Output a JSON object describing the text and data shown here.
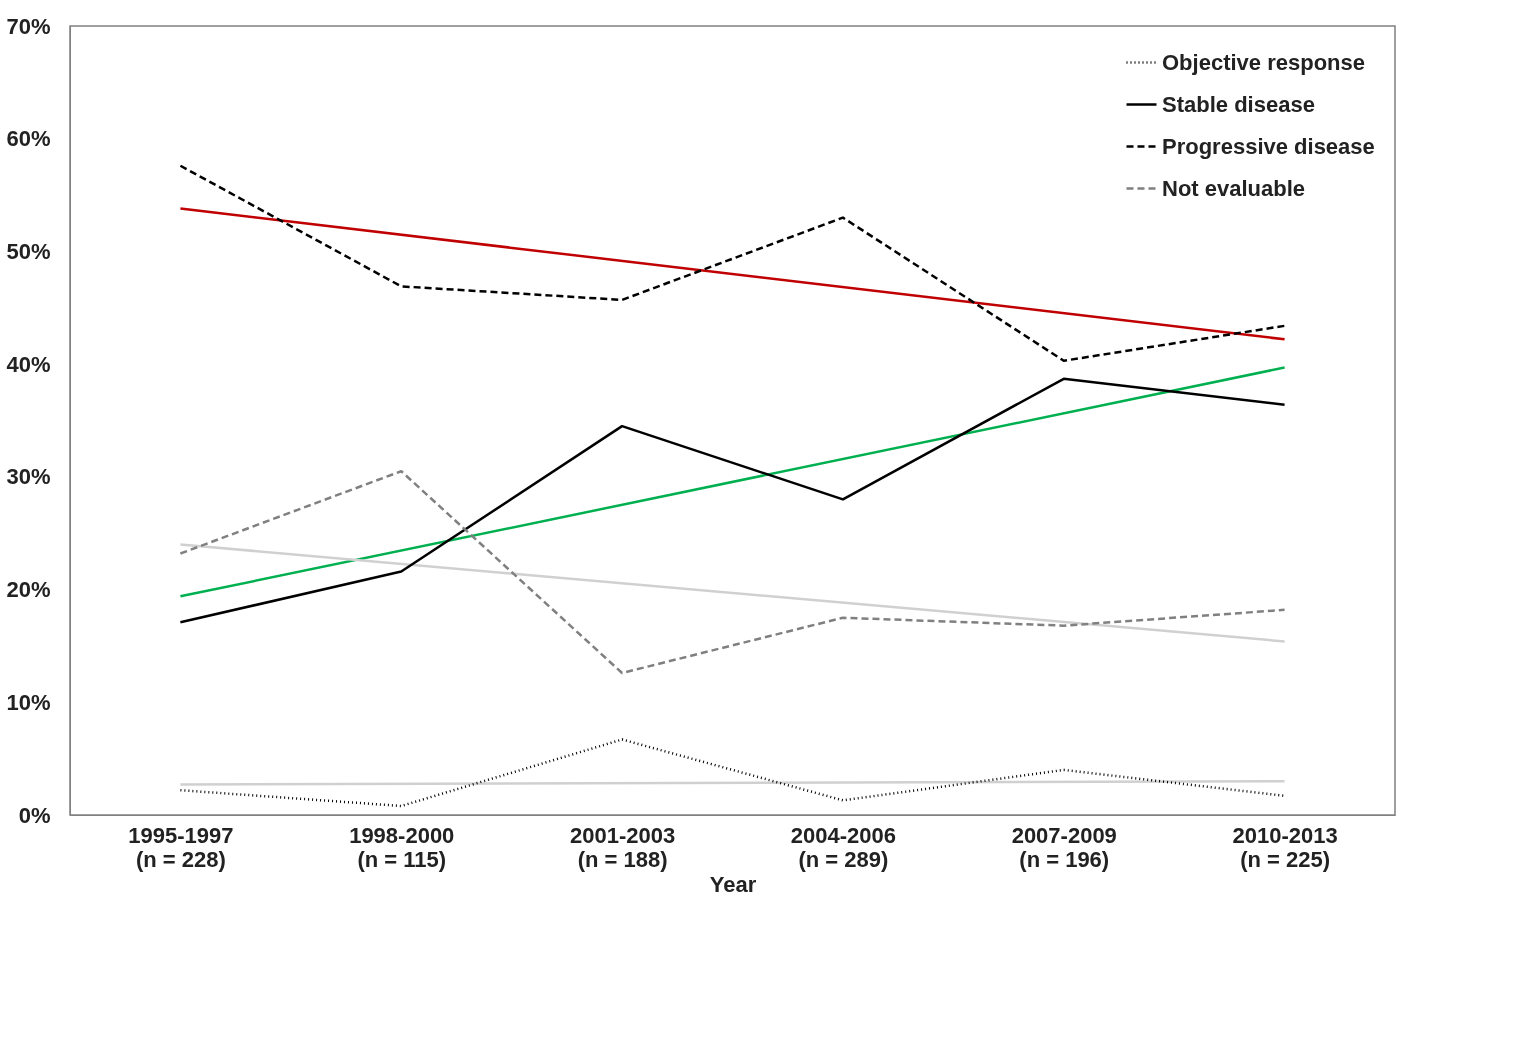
{
  "chart_data": {
    "type": "line",
    "xlabel": "Year",
    "categories": [
      "1995-1997\n(n = 228)",
      "1998-2000\n(n = 115)",
      "2001-2003\n(n = 188)",
      "2004-2006\n(n = 289)",
      "2007-2009\n(n = 196)",
      "2010-2013\n(n = 225)"
    ],
    "series": [
      {
        "name": "Objective response",
        "color": "#000000",
        "line_style": "dotted",
        "values": [
          2.2,
          0.8,
          6.7,
          1.3,
          4.0,
          1.7
        ]
      },
      {
        "name": "Stable disease",
        "color": "#000000",
        "line_style": "solid",
        "values": [
          17.1,
          21.6,
          34.5,
          28.0,
          38.7,
          36.4
        ]
      },
      {
        "name": "Progressive disease",
        "color": "#000000",
        "line_style": "dashed",
        "values": [
          57.6,
          46.9,
          45.7,
          53.0,
          40.3,
          43.4
        ]
      },
      {
        "name": "Not evaluable",
        "color": "#808080",
        "line_style": "dashed",
        "values": [
          23.2,
          30.5,
          12.6,
          17.5,
          16.8,
          18.2
        ]
      },
      {
        "color": "#c00000",
        "line_style": "solid",
        "x": [
          "1995-1997\n(n = 228)",
          "2010-2013\n(n = 225)"
        ],
        "values": [
          53.8,
          42.2
        ]
      },
      {
        "color": "#00b050",
        "line_style": "solid",
        "x": [
          "1995-1997\n(n = 228)",
          "2010-2013\n(n = 225)"
        ],
        "values": [
          19.4,
          39.7
        ]
      },
      {
        "color": "#d0d0d0",
        "line_style": "solid",
        "x": [
          "1995-1997\n(n = 228)",
          "2010-2013\n(n = 225)"
        ],
        "values": [
          24.0,
          15.4
        ]
      },
      {
        "color": "#d0d0d0",
        "line_style": "solid",
        "x": [
          "1995-1997\n(n = 228)",
          "2010-2013\n(n = 225)"
        ],
        "values": [
          2.7,
          3.0
        ]
      }
    ],
    "ylim": [
      0,
      70
    ],
    "yticks": [
      {
        "value": 0,
        "label": "0%"
      },
      {
        "value": 10,
        "label": "10%"
      },
      {
        "value": 20,
        "label": "20%"
      },
      {
        "value": 30,
        "label": "30%"
      },
      {
        "value": 40,
        "label": "40%"
      },
      {
        "value": 50,
        "label": "50%"
      },
      {
        "value": 60,
        "label": "60%"
      },
      {
        "value": 70,
        "label": "70%"
      }
    ],
    "grid": false,
    "legend": "top right",
    "marker": "none"
  }
}
